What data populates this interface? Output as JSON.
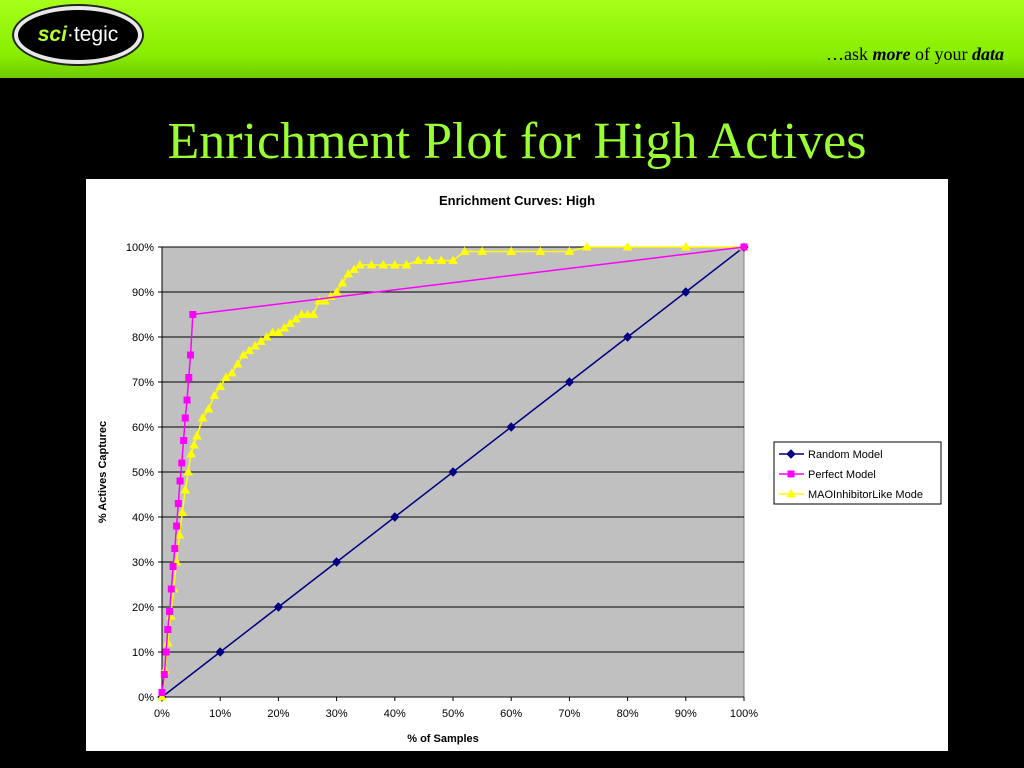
{
  "header": {
    "logo_sci": "sci",
    "logo_tegic": "tegic",
    "tagline_prefix": "…ask ",
    "tagline_more": "more",
    "tagline_mid": " of your ",
    "tagline_data": "data",
    "accent_color": "#99ff33",
    "bar_color": "#88ee00"
  },
  "slide": {
    "title": "Enrichment Plot for High Actives"
  },
  "chart_data": {
    "type": "line",
    "title": "Enrichment Curves: High",
    "xlabel": "% of Samples",
    "ylabel": "% Actives Capturec",
    "xlim": [
      0,
      100
    ],
    "ylim": [
      0,
      100
    ],
    "x_ticks": [
      "0%",
      "10%",
      "20%",
      "30%",
      "40%",
      "50%",
      "60%",
      "70%",
      "80%",
      "90%",
      "100%"
    ],
    "y_ticks": [
      "0%",
      "10%",
      "20%",
      "30%",
      "40%",
      "50%",
      "60%",
      "70%",
      "80%",
      "90%",
      "100%"
    ],
    "grid": "horizontal",
    "plot_background": "#c0c0c0",
    "legend_position": "right",
    "series": [
      {
        "name": "Random Model",
        "color": "#000080",
        "marker": "diamond",
        "x": [
          0,
          10,
          20,
          30,
          40,
          50,
          60,
          70,
          80,
          90,
          100
        ],
        "y": [
          0,
          10,
          20,
          30,
          40,
          50,
          60,
          70,
          80,
          90,
          100
        ]
      },
      {
        "name": "Perfect Model",
        "color": "#ff00ff",
        "marker": "square",
        "x": [
          0,
          0.4,
          0.7,
          1.0,
          1.3,
          1.6,
          1.9,
          2.2,
          2.5,
          2.8,
          3.1,
          3.4,
          3.7,
          4.0,
          4.3,
          4.6,
          4.9,
          5.3,
          100
        ],
        "y": [
          1,
          5,
          10,
          15,
          19,
          24,
          29,
          33,
          38,
          43,
          48,
          52,
          57,
          62,
          66,
          71,
          76,
          85,
          100
        ]
      },
      {
        "name": "MAOInhibitorLike Mode",
        "color": "#ffff00",
        "marker": "triangle",
        "x": [
          0,
          0.5,
          1,
          1.5,
          2,
          2.5,
          3,
          3.5,
          4,
          4.5,
          5,
          5.5,
          6,
          7,
          8,
          9,
          10,
          11,
          12,
          13,
          14,
          15,
          16,
          17,
          18,
          19,
          20,
          21,
          22,
          23,
          24,
          25,
          26,
          27,
          28,
          29,
          30,
          31,
          32,
          33,
          34,
          36,
          38,
          40,
          42,
          44,
          46,
          48,
          50,
          52,
          55,
          60,
          65,
          70,
          73,
          80,
          90,
          100
        ],
        "y": [
          0,
          6,
          12,
          18,
          24,
          30,
          36,
          41,
          46,
          50,
          54,
          56,
          58,
          62,
          64,
          67,
          69,
          71,
          72,
          74,
          76,
          77,
          78,
          79,
          80,
          81,
          81,
          82,
          83,
          84,
          85,
          85,
          85,
          88,
          88,
          89,
          90,
          92,
          94,
          95,
          96,
          96,
          96,
          96,
          96,
          97,
          97,
          97,
          97,
          99,
          99,
          99,
          99,
          99,
          100,
          100,
          100,
          100
        ]
      }
    ]
  }
}
